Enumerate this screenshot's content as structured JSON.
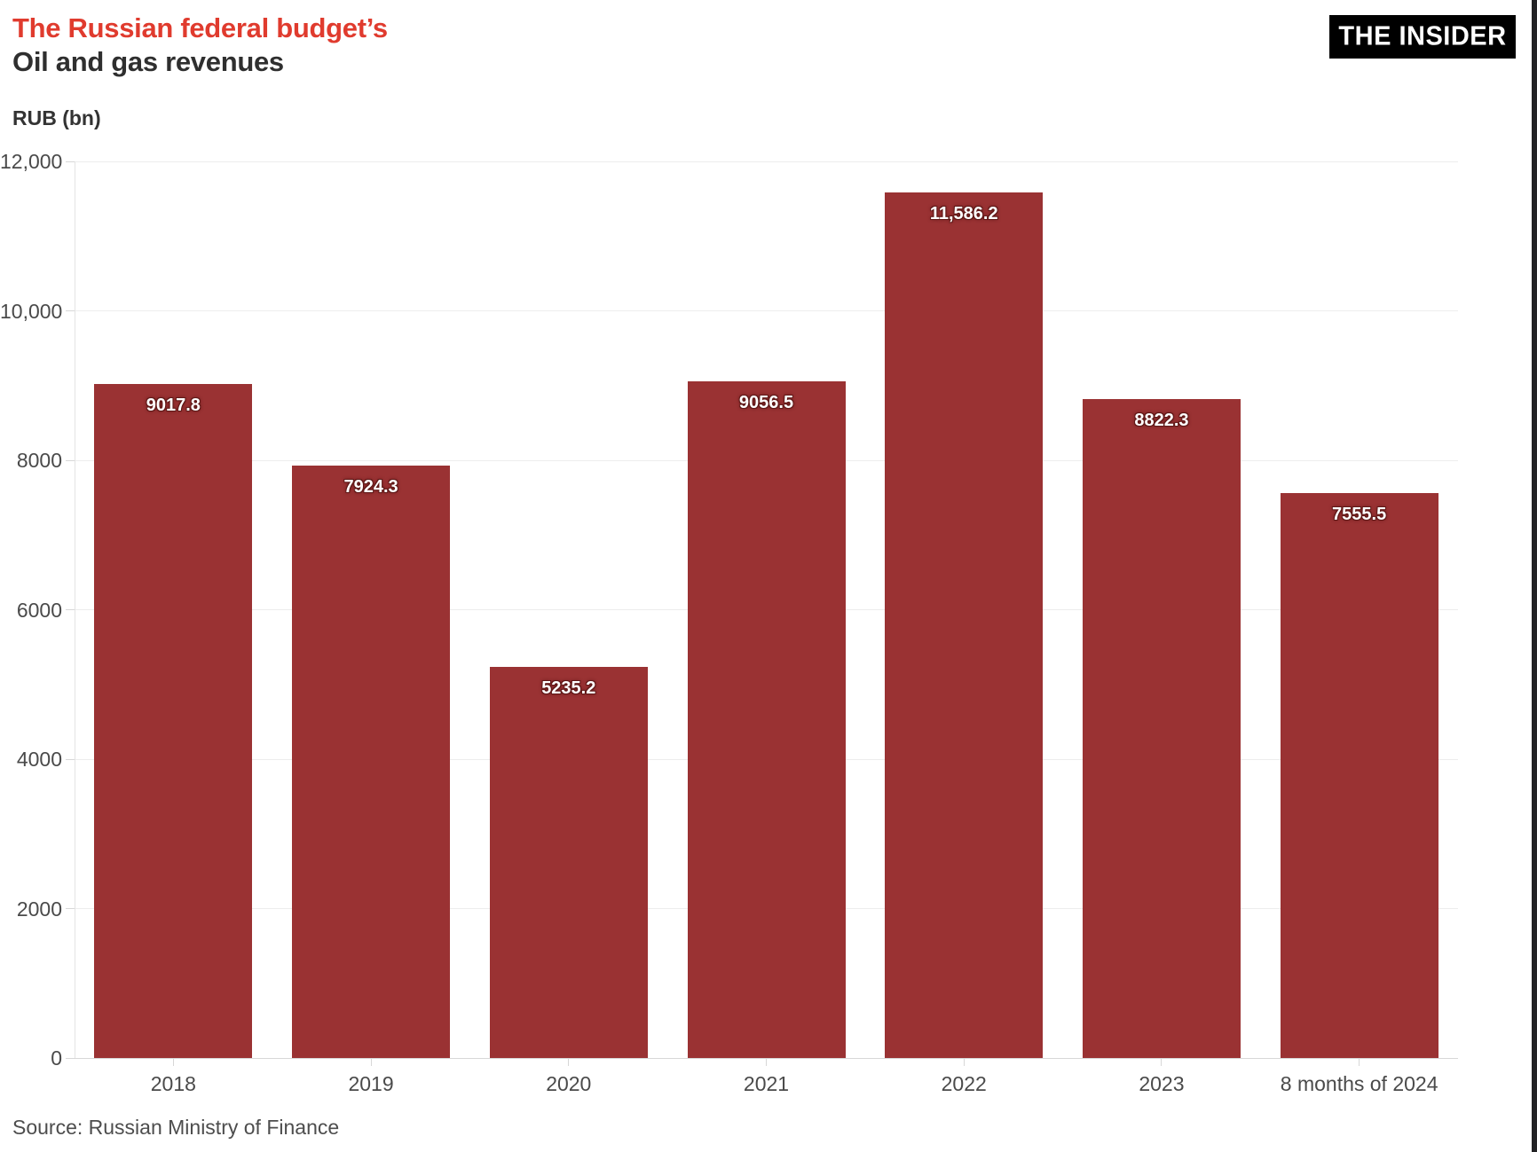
{
  "header": {
    "title_line1": "The Russian federal budget’s",
    "title_line2": "Oil and gas revenues",
    "logo_text": "THE INSIDER"
  },
  "axis_unit_label": "RUB (bn)",
  "source_note": "Source: Russian Ministry of Finance",
  "colors": {
    "title_accent": "#e03b2e",
    "title_secondary": "#2f2f2f",
    "bar_fill": "#9a3233",
    "value_label_text": "#ffffff",
    "value_label_outline": "#5f1817",
    "gridline": "#ededed",
    "axis_line": "#d7d7d7",
    "tick_text": "#4a4a4a",
    "logo_background": "#000000",
    "logo_text": "#ffffff",
    "right_edge_strip": "#232325"
  },
  "chart_data": {
    "type": "bar",
    "title": "The Russian federal budget’s Oil and gas revenues",
    "xlabel": "",
    "ylabel": "RUB (bn)",
    "categories": [
      "2018",
      "2019",
      "2020",
      "2021",
      "2022",
      "2023",
      "8 months of 2024"
    ],
    "values": [
      9017.8,
      7924.3,
      5235.2,
      9056.5,
      11586.2,
      8822.3,
      7555.5
    ],
    "value_labels": [
      "9017.8",
      "7924.3",
      "5235.2",
      "9056.5",
      "11,586.2",
      "8822.3",
      "7555.5"
    ],
    "ylim": [
      0,
      12000
    ],
    "yticks": [
      {
        "v": 0,
        "label": "0"
      },
      {
        "v": 2000,
        "label": "2000"
      },
      {
        "v": 4000,
        "label": "4000"
      },
      {
        "v": 6000,
        "label": "6000"
      },
      {
        "v": 8000,
        "label": "8000"
      },
      {
        "v": 10000,
        "label": "10,000"
      },
      {
        "v": 12000,
        "label": "12,000"
      }
    ],
    "grid": true,
    "legend": false,
    "bar_label_position": "inside-top",
    "source": "Source: Russian Ministry of Finance"
  }
}
